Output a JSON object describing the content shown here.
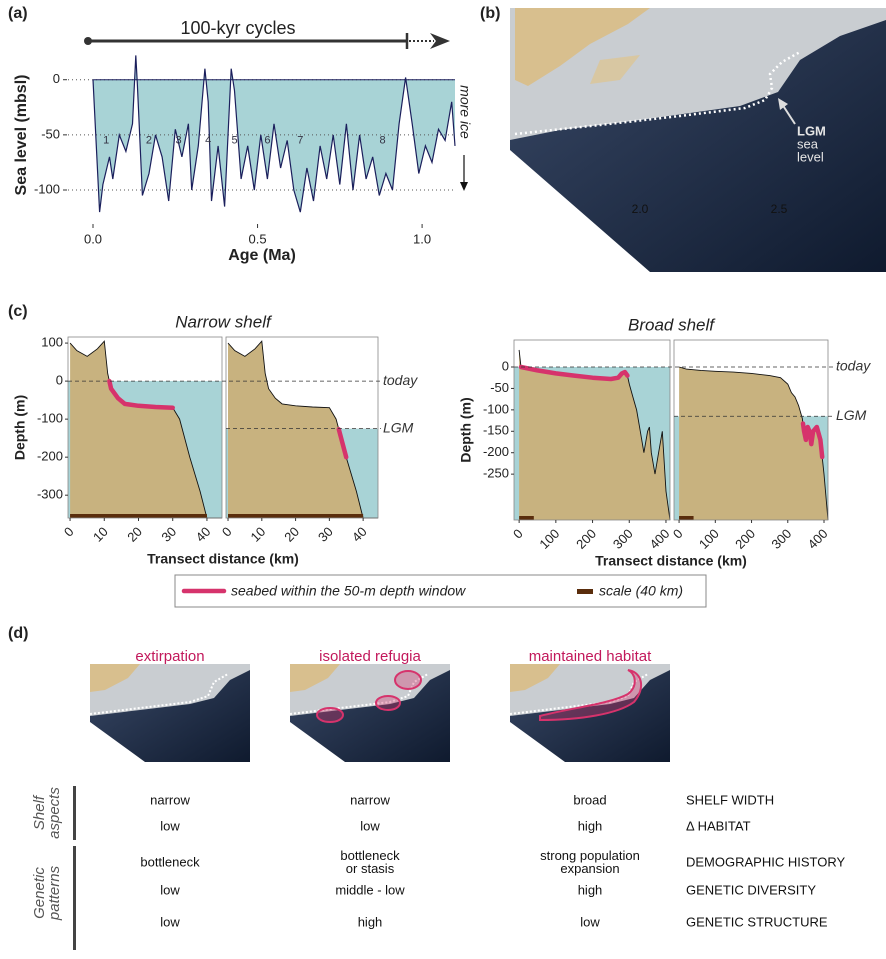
{
  "panel_labels": [
    "(a)",
    "(b)",
    "(c)",
    "(d)"
  ],
  "chart_data": [
    {
      "type": "area",
      "xlabel": "Age (Ma)",
      "ylabel": "Sea level (mbsl)",
      "x": [
        0,
        0.02,
        0.03,
        0.05,
        0.06,
        0.08,
        0.1,
        0.12,
        0.13,
        0.135,
        0.15,
        0.17,
        0.19,
        0.21,
        0.23,
        0.25,
        0.27,
        0.29,
        0.3,
        0.32,
        0.34,
        0.35,
        0.36,
        0.38,
        0.4,
        0.42,
        0.43,
        0.45,
        0.47,
        0.49,
        0.51,
        0.53,
        0.55,
        0.57,
        0.59,
        0.61,
        0.63,
        0.65,
        0.67,
        0.69,
        0.71,
        0.73,
        0.75,
        0.77,
        0.79,
        0.81,
        0.83,
        0.85,
        0.87,
        0.89,
        0.91,
        0.93,
        0.95,
        0.97,
        0.99,
        1.01,
        1.03,
        1.05,
        1.07,
        1.09,
        1.1
      ],
      "values": [
        0,
        -120,
        -95,
        -70,
        -90,
        -50,
        -65,
        -40,
        22,
        -5,
        -105,
        -85,
        -50,
        -70,
        -110,
        -45,
        -70,
        -40,
        -100,
        -60,
        10,
        -20,
        -110,
        -60,
        -115,
        10,
        -10,
        -90,
        -60,
        -100,
        -50,
        -90,
        -40,
        -80,
        -55,
        -100,
        -120,
        -80,
        -110,
        -60,
        -90,
        -50,
        -95,
        -40,
        -100,
        -50,
        -90,
        -70,
        -105,
        -85,
        -100,
        -40,
        2,
        -40,
        -85,
        -60,
        -75,
        -45,
        -55,
        -20,
        -60
      ],
      "xlim": [
        -0.076,
        1.1
      ],
      "ylim": [
        -129,
        36
      ],
      "xticks": [
        {
          "value": 0,
          "label": "0.0"
        },
        0.5,
        {
          "value": 1,
          "label": "1.0"
        }
      ],
      "yticks": [
        0,
        -50,
        -100
      ],
      "grid": true,
      "color": "#a8d3d6",
      "line_color": "#1b1f5c",
      "annotations": [
        "100-kyr cycles",
        "more ice"
      ],
      "cycle_labels": [
        "1",
        "2",
        "3",
        "4",
        "5",
        "6",
        "7",
        "8"
      ]
    },
    {
      "type": "profile",
      "title": "Narrow shelf",
      "xlabel": "Transect distance (km)",
      "ylabel": "Depth (m)",
      "xlim": [
        -0.6,
        44.4
      ],
      "ylim": [
        -360,
        116
      ],
      "xticks": [
        0,
        10,
        20,
        30,
        40
      ],
      "yticks": [
        100,
        0,
        -100,
        -200,
        -300
      ],
      "land_color": "#c8b27f",
      "water_color": "#a8d3d6",
      "scale_bar": [
        0,
        40
      ],
      "panels": [
        {
          "x": [
            0,
            2,
            5,
            8,
            10,
            11,
            12,
            14,
            16,
            20,
            25,
            30,
            32,
            35,
            38,
            40,
            44.4
          ],
          "values": [
            100,
            80,
            65,
            85,
            105,
            20,
            -20,
            -45,
            -60,
            -65,
            -68,
            -70,
            -100,
            -200,
            -290,
            -360,
            -360
          ],
          "sea_level": 0,
          "sea_level_label": "today",
          "highlight": [
            11.5,
            30
          ]
        },
        {
          "x": [
            0,
            2,
            5,
            8,
            10,
            11,
            12,
            14,
            16,
            20,
            25,
            30,
            32,
            35,
            38,
            40,
            44.4
          ],
          "values": [
            100,
            80,
            65,
            85,
            105,
            20,
            -20,
            -45,
            -60,
            -65,
            -68,
            -70,
            -100,
            -200,
            -290,
            -360,
            -360
          ],
          "sea_level": -125,
          "sea_level_label": "LGM",
          "highlight": [
            32.8,
            35
          ]
        }
      ]
    },
    {
      "type": "profile",
      "title": "Broad shelf",
      "xlabel": "Transect distance (km)",
      "ylabel": "Depth (m)",
      "xlim": [
        -14,
        411
      ],
      "ylim": [
        -357,
        63
      ],
      "xticks": [
        0,
        100,
        200,
        300,
        400
      ],
      "yticks": [
        0,
        -50,
        -100,
        -150,
        -200,
        -250
      ],
      "land_color": "#c8b27f",
      "water_color": "#a8d3d6",
      "scale_bar": [
        0,
        40
      ],
      "panels": [
        {
          "x": [
            0,
            5,
            50,
            100,
            150,
            200,
            250,
            270,
            280,
            288,
            295,
            300,
            310,
            320,
            330,
            340,
            350,
            355,
            360,
            370,
            380,
            390,
            400,
            411
          ],
          "values": [
            40,
            0,
            -8,
            -15,
            -20,
            -25,
            -28,
            -25,
            -15,
            -12,
            -20,
            -40,
            -70,
            -100,
            -150,
            -200,
            -150,
            -140,
            -200,
            -250,
            -200,
            -150,
            -290,
            -357
          ],
          "sea_level": 0,
          "sea_level_label": "today",
          "highlight": [
            5,
            295
          ]
        },
        {
          "x": [
            0,
            20,
            60,
            100,
            150,
            200,
            250,
            280,
            300,
            310,
            320,
            330,
            340,
            345,
            350,
            355,
            360,
            365,
            370,
            380,
            390,
            400,
            411
          ],
          "values": [
            0,
            -5,
            -8,
            -10,
            -12,
            -15,
            -20,
            -25,
            -40,
            -60,
            -70,
            -90,
            -120,
            -150,
            -170,
            -140,
            -150,
            -180,
            -150,
            -140,
            -170,
            -250,
            -357
          ],
          "sea_level": -115,
          "sea_level_label": "LGM",
          "highlight": [
            342,
            395
          ]
        }
      ]
    }
  ],
  "panel_c_legend": [
    {
      "name": "seabed within the 50-m depth window",
      "color": "#d6336c"
    },
    {
      "name": "scale (40 km)",
      "color": "#5a2d0c"
    }
  ],
  "panel_b": {
    "labels": [
      "LGM",
      "sea",
      "level"
    ],
    "ticks": [
      "2.0",
      "2.5"
    ]
  },
  "panel_d": {
    "scenarios": [
      "extirpation",
      "isolated refugia",
      "maintained habitat"
    ],
    "table": {
      "groups": [
        {
          "label": "Shelf\naspects",
          "rows": [
            {
              "cells": [
                "narrow",
                "narrow",
                "broad"
              ],
              "label": "SHELF WIDTH"
            },
            {
              "cells": [
                "low",
                "low",
                "high"
              ],
              "label": "Δ HABITAT"
            }
          ]
        },
        {
          "label": "Genetic\npatterns",
          "rows": [
            {
              "cells": [
                "bottleneck",
                "bottleneck\nor stasis",
                "strong population\nexpansion"
              ],
              "label": "DEMOGRAPHIC HISTORY"
            },
            {
              "cells": [
                "low",
                "middle - low",
                "high"
              ],
              "label": "GENETIC DIVERSITY"
            },
            {
              "cells": [
                "low",
                "high",
                "low"
              ],
              "label": "GENETIC STRUCTURE"
            }
          ]
        }
      ]
    }
  }
}
